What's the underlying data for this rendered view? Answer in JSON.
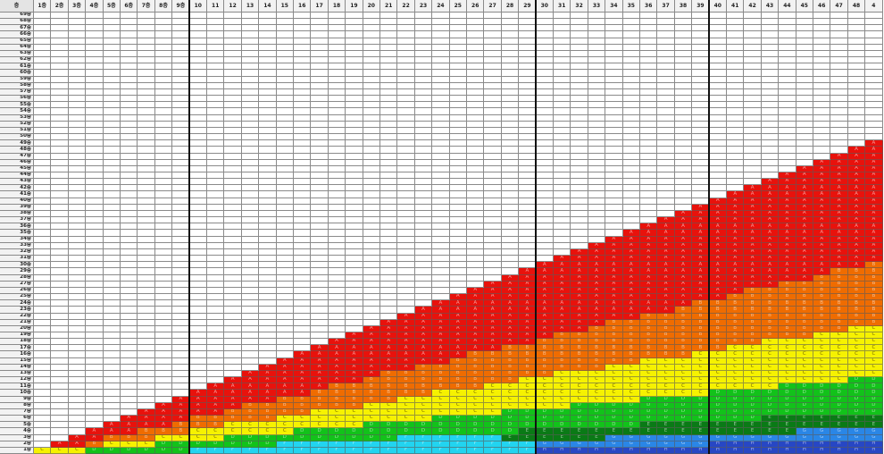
{
  "corner_label": "층",
  "columns": [
    "1층",
    "2층",
    "3층",
    "4층",
    "5층",
    "6층",
    "7층",
    "8층",
    "9층",
    "10",
    "11",
    "12",
    "13",
    "14",
    "15",
    "16",
    "17",
    "18",
    "19",
    "20",
    "21",
    "22",
    "23",
    "24",
    "25",
    "26",
    "27",
    "28",
    "29",
    "30",
    "31",
    "32",
    "33",
    "34",
    "35",
    "36",
    "37",
    "38",
    "39",
    "40",
    "41",
    "42",
    "43",
    "44",
    "45",
    "46",
    "47",
    "48",
    "4"
  ],
  "rows": [
    "69층",
    "68층",
    "67층",
    "66층",
    "65층",
    "64층",
    "63층",
    "62층",
    "61층",
    "60층",
    "59층",
    "58층",
    "57층",
    "56층",
    "55층",
    "54층",
    "53층",
    "52층",
    "51층",
    "50층",
    "49층",
    "48층",
    "47층",
    "46층",
    "45층",
    "44층",
    "43층",
    "42층",
    "41층",
    "40층",
    "39층",
    "38층",
    "37층",
    "36층",
    "35층",
    "34층",
    "33층",
    "32층",
    "31층",
    "30층",
    "29층",
    "28층",
    "27층",
    "26층",
    "25층",
    "24층",
    "23층",
    "22층",
    "21층",
    "20층",
    "19층",
    "18층",
    "17층",
    "16층",
    "15층",
    "14층",
    "13층",
    "12층",
    "11층",
    "10층",
    "9층",
    "8층",
    "7층",
    "6층",
    "5층",
    "4층",
    "3층",
    "2층",
    "1층"
  ],
  "grade_colors": {
    "A": "#e8120c",
    "B": "#ef6c00",
    "C": "#f6f200",
    "D": "#12c21a",
    "E": "#0a7a16",
    "F": "#22d4f0",
    "G": "#2a86e6",
    "H": "#2747c4"
  },
  "grade_letters": {
    "A": "A",
    "B": "B",
    "C": "C",
    "D": "D",
    "E": "E",
    "F": "F",
    "G": "G",
    "H": "H"
  },
  "heavy_divider_columns": [
    "10",
    "30",
    "40"
  ]
}
